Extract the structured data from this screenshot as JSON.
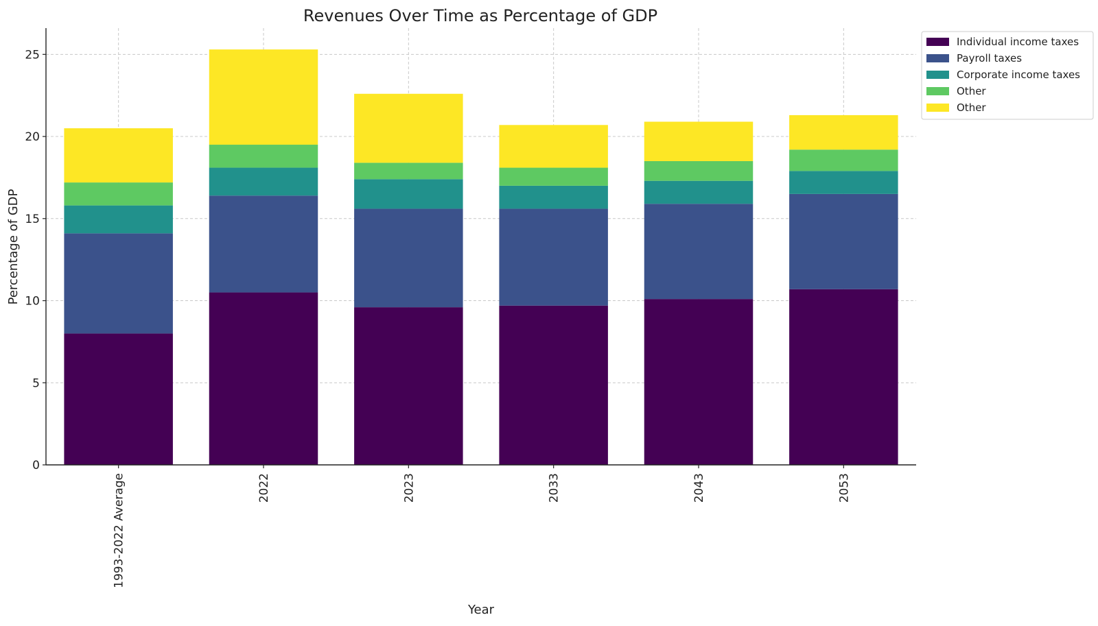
{
  "chart_data": {
    "type": "bar",
    "stacked": true,
    "title": "Revenues Over Time as Percentage of GDP",
    "xlabel": "Year",
    "ylabel": "Percentage of GDP",
    "ylim": [
      0,
      26.6
    ],
    "yticks": [
      0,
      5,
      10,
      15,
      20,
      25
    ],
    "grid": true,
    "legend_position": "top-right, outside plot",
    "categories": [
      "1993-2022 Average",
      "2022",
      "2023",
      "2033",
      "2043",
      "2053"
    ],
    "series": [
      {
        "name": "Individual income taxes",
        "color": "#440154",
        "values": [
          8.0,
          10.5,
          9.6,
          9.7,
          10.1,
          10.7
        ]
      },
      {
        "name": "Payroll taxes",
        "color": "#3b528b",
        "values": [
          6.1,
          5.9,
          6.0,
          5.9,
          5.8,
          5.8
        ]
      },
      {
        "name": "Corporate income taxes",
        "color": "#21918c",
        "values": [
          1.7,
          1.7,
          1.8,
          1.4,
          1.4,
          1.4
        ]
      },
      {
        "name": "Other",
        "color": "#5ec962",
        "values": [
          1.4,
          1.4,
          1.0,
          1.1,
          1.2,
          1.3
        ]
      },
      {
        "name": "Other",
        "color": "#fde725",
        "values": [
          3.3,
          5.8,
          4.2,
          2.6,
          2.4,
          2.1
        ]
      }
    ]
  }
}
